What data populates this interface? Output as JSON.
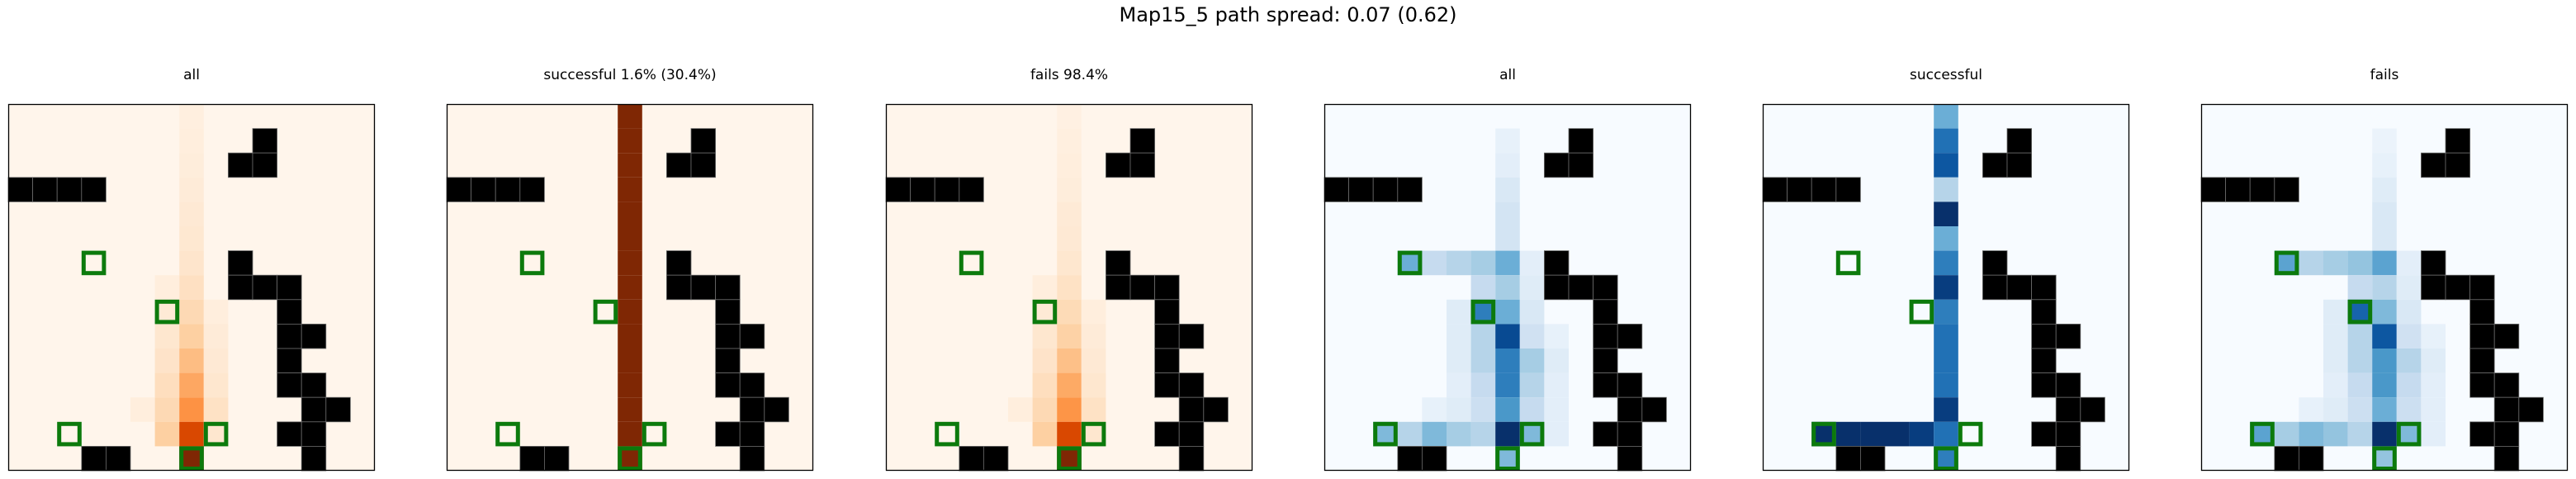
{
  "suptitle": "Map15_5 path spread: 0.07 (0.62)",
  "chart_data": {
    "type": "heatmap",
    "title": "Map15_5 path spread: 0.07 (0.62)",
    "grid_size": [
      15,
      15
    ],
    "obstacles": [
      [
        10,
        1
      ],
      [
        9,
        2
      ],
      [
        10,
        2
      ],
      [
        0,
        3
      ],
      [
        1,
        3
      ],
      [
        2,
        3
      ],
      [
        3,
        3
      ],
      [
        9,
        6
      ],
      [
        9,
        7
      ],
      [
        10,
        7
      ],
      [
        11,
        7
      ],
      [
        11,
        8
      ],
      [
        11,
        9
      ],
      [
        12,
        9
      ],
      [
        11,
        10
      ],
      [
        11,
        11
      ],
      [
        12,
        11
      ],
      [
        12,
        12
      ],
      [
        13,
        12
      ],
      [
        11,
        13
      ],
      [
        12,
        13
      ],
      [
        3,
        14
      ],
      [
        4,
        14
      ],
      [
        12,
        14
      ]
    ],
    "markers": [
      [
        3,
        6
      ],
      [
        6,
        8
      ],
      [
        2,
        13
      ],
      [
        8,
        13
      ],
      [
        7,
        14
      ]
    ],
    "grid": false,
    "panels": [
      {
        "title": "all",
        "colormap": "Oranges",
        "cells": [
          [
            7,
            0,
            0.05
          ],
          [
            7,
            1,
            0.06
          ],
          [
            7,
            2,
            0.07
          ],
          [
            7,
            3,
            0.08
          ],
          [
            7,
            4,
            0.1
          ],
          [
            7,
            5,
            0.11
          ],
          [
            7,
            6,
            0.13
          ],
          [
            7,
            7,
            0.16
          ],
          [
            6,
            7,
            0.06
          ],
          [
            6,
            8,
            0.09
          ],
          [
            7,
            8,
            0.2
          ],
          [
            8,
            8,
            0.06
          ],
          [
            6,
            9,
            0.12
          ],
          [
            7,
            9,
            0.25
          ],
          [
            8,
            9,
            0.08
          ],
          [
            6,
            10,
            0.14
          ],
          [
            7,
            10,
            0.32
          ],
          [
            8,
            10,
            0.1
          ],
          [
            6,
            11,
            0.17
          ],
          [
            7,
            11,
            0.4
          ],
          [
            8,
            11,
            0.12
          ],
          [
            5,
            12,
            0.06
          ],
          [
            6,
            12,
            0.2
          ],
          [
            7,
            12,
            0.48
          ],
          [
            8,
            12,
            0.15
          ],
          [
            6,
            13,
            0.25
          ],
          [
            7,
            13,
            0.75
          ],
          [
            8,
            13,
            0.12
          ],
          [
            7,
            14,
            1.0
          ]
        ]
      },
      {
        "title": "successful 1.6% (30.4%)",
        "colormap": "Oranges",
        "cells": [
          [
            7,
            0,
            1
          ],
          [
            7,
            1,
            1
          ],
          [
            7,
            2,
            1
          ],
          [
            7,
            3,
            1
          ],
          [
            7,
            4,
            1
          ],
          [
            7,
            5,
            1
          ],
          [
            7,
            6,
            1
          ],
          [
            7,
            7,
            1
          ],
          [
            7,
            8,
            1
          ],
          [
            7,
            9,
            1
          ],
          [
            7,
            10,
            1
          ],
          [
            7,
            11,
            1
          ],
          [
            7,
            12,
            1
          ],
          [
            7,
            13,
            1
          ],
          [
            7,
            14,
            1
          ]
        ]
      },
      {
        "title": "fails 98.4%",
        "colormap": "Oranges",
        "cells": [
          [
            7,
            0,
            0.04
          ],
          [
            7,
            1,
            0.05
          ],
          [
            7,
            2,
            0.06
          ],
          [
            7,
            3,
            0.07
          ],
          [
            7,
            4,
            0.09
          ],
          [
            7,
            5,
            0.1
          ],
          [
            7,
            6,
            0.12
          ],
          [
            7,
            7,
            0.15
          ],
          [
            6,
            7,
            0.06
          ],
          [
            6,
            8,
            0.09
          ],
          [
            7,
            8,
            0.19
          ],
          [
            8,
            8,
            0.06
          ],
          [
            6,
            9,
            0.12
          ],
          [
            7,
            9,
            0.24
          ],
          [
            8,
            9,
            0.08
          ],
          [
            6,
            10,
            0.14
          ],
          [
            7,
            10,
            0.31
          ],
          [
            8,
            10,
            0.1
          ],
          [
            6,
            11,
            0.17
          ],
          [
            7,
            11,
            0.39
          ],
          [
            8,
            11,
            0.12
          ],
          [
            5,
            12,
            0.06
          ],
          [
            6,
            12,
            0.2
          ],
          [
            7,
            12,
            0.47
          ],
          [
            8,
            12,
            0.15
          ],
          [
            6,
            13,
            0.25
          ],
          [
            7,
            13,
            0.75
          ],
          [
            8,
            13,
            0.12
          ],
          [
            7,
            14,
            1.0
          ]
        ]
      },
      {
        "title": "all",
        "colormap": "Blues",
        "cells": [
          [
            7,
            1,
            0.08
          ],
          [
            7,
            2,
            0.1
          ],
          [
            7,
            3,
            0.15
          ],
          [
            7,
            4,
            0.18
          ],
          [
            7,
            5,
            0.18
          ],
          [
            3,
            6,
            0.5
          ],
          [
            4,
            6,
            0.25
          ],
          [
            5,
            6,
            0.3
          ],
          [
            6,
            6,
            0.35
          ],
          [
            7,
            6,
            0.5
          ],
          [
            8,
            6,
            0.1
          ],
          [
            6,
            7,
            0.25
          ],
          [
            7,
            7,
            0.35
          ],
          [
            8,
            7,
            0.12
          ],
          [
            5,
            8,
            0.12
          ],
          [
            6,
            8,
            0.7
          ],
          [
            7,
            8,
            0.5
          ],
          [
            8,
            8,
            0.15
          ],
          [
            5,
            9,
            0.12
          ],
          [
            6,
            9,
            0.3
          ],
          [
            7,
            9,
            0.9
          ],
          [
            8,
            9,
            0.2
          ],
          [
            9,
            9,
            0.08
          ],
          [
            5,
            10,
            0.12
          ],
          [
            6,
            10,
            0.3
          ],
          [
            7,
            10,
            0.7
          ],
          [
            8,
            10,
            0.35
          ],
          [
            9,
            10,
            0.12
          ],
          [
            5,
            11,
            0.1
          ],
          [
            6,
            11,
            0.25
          ],
          [
            7,
            11,
            0.7
          ],
          [
            8,
            11,
            0.3
          ],
          [
            9,
            11,
            0.1
          ],
          [
            4,
            12,
            0.08
          ],
          [
            5,
            12,
            0.12
          ],
          [
            6,
            12,
            0.22
          ],
          [
            7,
            12,
            0.6
          ],
          [
            8,
            12,
            0.25
          ],
          [
            9,
            12,
            0.1
          ],
          [
            2,
            13,
            0.45
          ],
          [
            3,
            13,
            0.3
          ],
          [
            4,
            13,
            0.45
          ],
          [
            5,
            13,
            0.35
          ],
          [
            6,
            13,
            0.3
          ],
          [
            7,
            13,
            1.0
          ],
          [
            8,
            13,
            0.45
          ],
          [
            9,
            13,
            0.1
          ],
          [
            7,
            14,
            0.45
          ]
        ]
      },
      {
        "title": "successful",
        "colormap": "Blues",
        "cells": [
          [
            7,
            0,
            0.5
          ],
          [
            7,
            1,
            0.75
          ],
          [
            7,
            2,
            0.85
          ],
          [
            7,
            3,
            0.3
          ],
          [
            7,
            4,
            1.0
          ],
          [
            7,
            5,
            0.5
          ],
          [
            7,
            6,
            0.7
          ],
          [
            7,
            7,
            0.95
          ],
          [
            7,
            8,
            0.7
          ],
          [
            7,
            9,
            0.75
          ],
          [
            7,
            10,
            0.75
          ],
          [
            7,
            11,
            0.75
          ],
          [
            7,
            12,
            0.95
          ],
          [
            2,
            13,
            1.0
          ],
          [
            3,
            13,
            1.0
          ],
          [
            4,
            13,
            1.0
          ],
          [
            5,
            13,
            1.0
          ],
          [
            6,
            13,
            0.95
          ],
          [
            7,
            13,
            0.75
          ],
          [
            7,
            14,
            0.7
          ]
        ]
      },
      {
        "title": "fails",
        "colormap": "Blues",
        "cells": [
          [
            7,
            1,
            0.06
          ],
          [
            7,
            2,
            0.08
          ],
          [
            7,
            3,
            0.12
          ],
          [
            7,
            4,
            0.15
          ],
          [
            7,
            5,
            0.15
          ],
          [
            3,
            6,
            0.55
          ],
          [
            4,
            6,
            0.3
          ],
          [
            5,
            6,
            0.35
          ],
          [
            6,
            6,
            0.4
          ],
          [
            7,
            6,
            0.55
          ],
          [
            8,
            6,
            0.1
          ],
          [
            6,
            7,
            0.25
          ],
          [
            7,
            7,
            0.3
          ],
          [
            8,
            7,
            0.12
          ],
          [
            5,
            8,
            0.12
          ],
          [
            6,
            8,
            0.8
          ],
          [
            7,
            8,
            0.45
          ],
          [
            8,
            8,
            0.15
          ],
          [
            5,
            9,
            0.12
          ],
          [
            6,
            9,
            0.3
          ],
          [
            7,
            9,
            0.85
          ],
          [
            8,
            9,
            0.2
          ],
          [
            9,
            9,
            0.08
          ],
          [
            5,
            10,
            0.12
          ],
          [
            6,
            10,
            0.3
          ],
          [
            7,
            10,
            0.6
          ],
          [
            8,
            10,
            0.3
          ],
          [
            9,
            10,
            0.12
          ],
          [
            5,
            11,
            0.1
          ],
          [
            6,
            11,
            0.25
          ],
          [
            7,
            11,
            0.6
          ],
          [
            8,
            11,
            0.25
          ],
          [
            9,
            11,
            0.1
          ],
          [
            4,
            12,
            0.08
          ],
          [
            5,
            12,
            0.12
          ],
          [
            6,
            12,
            0.22
          ],
          [
            7,
            12,
            0.5
          ],
          [
            8,
            12,
            0.22
          ],
          [
            9,
            12,
            0.1
          ],
          [
            2,
            13,
            0.55
          ],
          [
            3,
            13,
            0.35
          ],
          [
            4,
            13,
            0.45
          ],
          [
            5,
            13,
            0.4
          ],
          [
            6,
            13,
            0.3
          ],
          [
            7,
            13,
            1.0
          ],
          [
            8,
            13,
            0.45
          ],
          [
            9,
            13,
            0.1
          ],
          [
            7,
            14,
            0.4
          ]
        ]
      }
    ]
  }
}
